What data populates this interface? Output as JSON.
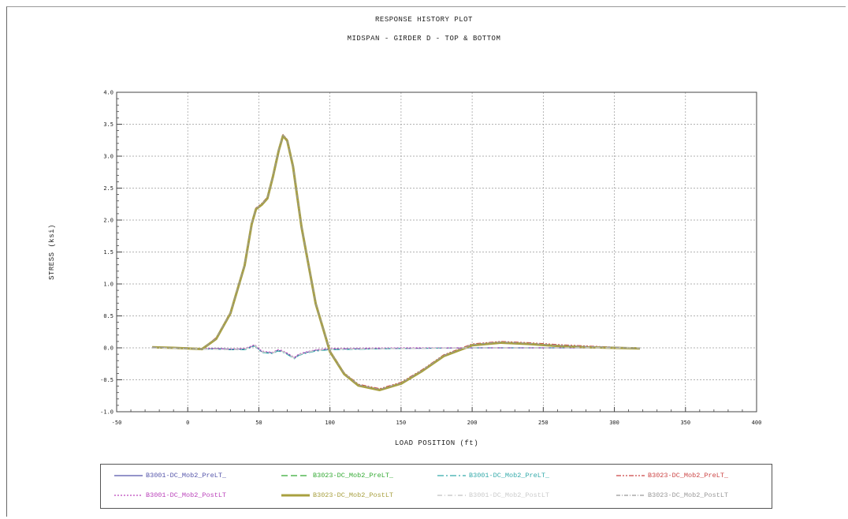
{
  "chart_data": {
    "type": "line",
    "title": "RESPONSE HISTORY PLOT",
    "subtitle": "MIDSPAN - GIRDER D - TOP & BOTTOM",
    "xlabel": "LOAD POSITION (ft)",
    "ylabel": "STRESS (ksi)",
    "xlim": [
      -50,
      400
    ],
    "ylim": [
      -1.0,
      4.0
    ],
    "xticks": [
      "-50",
      "0",
      "50",
      "100",
      "150",
      "200",
      "250",
      "300",
      "350",
      "400"
    ],
    "yticks": [
      "-1.0",
      "-0.5",
      "0.0",
      "0.5",
      "1.0",
      "1.5",
      "2.0",
      "2.5",
      "3.0",
      "3.5",
      "4.0"
    ],
    "grid": true,
    "legend_position": "bottom",
    "series": [
      {
        "name": "B3001-DC_Mob2_PreLT_",
        "color": "#5555aa",
        "dash": "solid",
        "width": 1.2,
        "x": [
          -25,
          0,
          10,
          20,
          30,
          40,
          45,
          47,
          49,
          52,
          55,
          60,
          63,
          66,
          69,
          72,
          75,
          78,
          82,
          90,
          100,
          150,
          200,
          250,
          300,
          318
        ],
        "y": [
          0.01,
          0.0,
          -0.02,
          -0.01,
          -0.02,
          -0.02,
          0.02,
          0.04,
          0.0,
          -0.06,
          -0.07,
          -0.08,
          -0.04,
          -0.05,
          -0.08,
          -0.12,
          -0.16,
          -0.11,
          -0.08,
          -0.04,
          -0.02,
          -0.01,
          0.0,
          0.0,
          0.0,
          0.0
        ]
      },
      {
        "name": "B3023-DC_Mob2_PreLT_",
        "color": "#33aa33",
        "dash": "8,4",
        "width": 1.2,
        "x": [
          -25,
          -10,
          0,
          10,
          20,
          30,
          40,
          45,
          48,
          52,
          56,
          60,
          64,
          67,
          70,
          74,
          80,
          90,
          100,
          110,
          120,
          135,
          150,
          165,
          180,
          200,
          220,
          240,
          260,
          280,
          300,
          318
        ],
        "y": [
          0.01,
          0.0,
          -0.01,
          -0.02,
          0.15,
          0.55,
          1.3,
          1.95,
          2.18,
          2.25,
          2.35,
          2.7,
          3.1,
          3.33,
          3.25,
          2.85,
          1.9,
          0.7,
          -0.05,
          -0.4,
          -0.58,
          -0.65,
          -0.55,
          -0.35,
          -0.12,
          0.05,
          0.09,
          0.07,
          0.04,
          0.02,
          0.01,
          -0.01
        ]
      },
      {
        "name": "B3001-DC_Mob2_PreLT_",
        "color": "#33aaaa",
        "dash": "8,3,2,3",
        "width": 1.2,
        "x": [
          -25,
          0,
          10,
          20,
          30,
          40,
          45,
          47,
          49,
          52,
          55,
          60,
          63,
          66,
          69,
          72,
          75,
          78,
          82,
          90,
          100,
          150,
          200,
          250,
          300,
          318
        ],
        "y": [
          0.0,
          -0.01,
          -0.02,
          -0.02,
          -0.03,
          -0.03,
          0.01,
          0.03,
          -0.01,
          -0.07,
          -0.08,
          -0.09,
          -0.05,
          -0.06,
          -0.09,
          -0.13,
          -0.17,
          -0.12,
          -0.09,
          -0.05,
          -0.03,
          -0.01,
          0.0,
          0.0,
          0.0,
          0.0
        ]
      },
      {
        "name": "B3023-DC_Mob2_PreLT_",
        "color": "#cc4444",
        "dash": "6,2,2,2,2,2",
        "width": 1.2,
        "x": [
          -25,
          -10,
          0,
          10,
          20,
          30,
          40,
          45,
          48,
          52,
          56,
          60,
          64,
          67,
          70,
          74,
          80,
          90,
          100,
          110,
          120,
          135,
          150,
          165,
          180,
          200,
          220,
          240,
          260,
          280,
          300,
          318
        ],
        "y": [
          0.01,
          0.0,
          -0.01,
          -0.02,
          0.16,
          0.56,
          1.31,
          1.96,
          2.19,
          2.26,
          2.36,
          2.71,
          3.11,
          3.34,
          3.26,
          2.86,
          1.91,
          0.71,
          -0.04,
          -0.39,
          -0.57,
          -0.64,
          -0.54,
          -0.34,
          -0.11,
          0.06,
          0.1,
          0.08,
          0.05,
          0.03,
          0.01,
          -0.01
        ]
      },
      {
        "name": "B3001-DC_Mob2_PostLT",
        "color": "#bb44bb",
        "dash": "2,2",
        "width": 1.2,
        "x": [
          -25,
          0,
          10,
          20,
          30,
          40,
          45,
          47,
          49,
          52,
          55,
          60,
          63,
          66,
          69,
          72,
          75,
          78,
          82,
          90,
          100,
          150,
          200,
          250,
          300,
          318
        ],
        "y": [
          0.0,
          0.0,
          -0.01,
          -0.01,
          -0.02,
          -0.01,
          0.03,
          0.05,
          0.01,
          -0.05,
          -0.06,
          -0.07,
          -0.03,
          -0.04,
          -0.07,
          -0.11,
          -0.15,
          -0.1,
          -0.07,
          -0.03,
          -0.01,
          0.0,
          0.0,
          0.0,
          0.0,
          0.0
        ]
      },
      {
        "name": "B3023-DC_Mob2_PostLT",
        "color": "#a8a040",
        "dash": "solid",
        "width": 3,
        "x": [
          -25,
          -10,
          0,
          10,
          20,
          30,
          40,
          45,
          48,
          52,
          56,
          60,
          64,
          67,
          70,
          74,
          80,
          90,
          100,
          110,
          120,
          135,
          150,
          165,
          180,
          200,
          220,
          240,
          260,
          280,
          300,
          318
        ],
        "y": [
          0.01,
          0.0,
          -0.01,
          -0.02,
          0.14,
          0.54,
          1.29,
          1.94,
          2.17,
          2.24,
          2.34,
          2.69,
          3.09,
          3.32,
          3.24,
          2.84,
          1.89,
          0.69,
          -0.06,
          -0.41,
          -0.59,
          -0.66,
          -0.56,
          -0.36,
          -0.13,
          0.04,
          0.08,
          0.06,
          0.03,
          0.01,
          0.0,
          -0.01
        ]
      },
      {
        "name": "B3001-DC_Mob2_PostLT",
        "color": "#cccccc",
        "dash": "6,3,1,3",
        "width": 1.5,
        "x": [
          -25,
          0,
          10,
          20,
          30,
          40,
          45,
          47,
          49,
          52,
          55,
          60,
          63,
          66,
          69,
          72,
          75,
          78,
          82,
          90,
          100,
          150,
          200,
          250,
          300,
          318
        ],
        "y": [
          0.0,
          -0.01,
          -0.02,
          -0.02,
          -0.03,
          -0.02,
          0.02,
          0.04,
          0.0,
          -0.06,
          -0.07,
          -0.08,
          -0.04,
          -0.05,
          -0.08,
          -0.12,
          -0.16,
          -0.11,
          -0.08,
          -0.04,
          -0.02,
          -0.01,
          0.0,
          0.0,
          0.0,
          0.0
        ]
      },
      {
        "name": "B3023-DC_Mob2_PostLT",
        "color": "#999999",
        "dash": "5,2,1,2",
        "width": 1.2,
        "x": [
          -25,
          -10,
          0,
          10,
          20,
          30,
          40,
          45,
          48,
          52,
          56,
          60,
          64,
          67,
          70,
          74,
          80,
          90,
          100,
          110,
          120,
          135,
          150,
          165,
          180,
          200,
          220,
          240,
          260,
          280,
          300,
          318
        ],
        "y": [
          0.01,
          0.0,
          -0.01,
          -0.02,
          0.15,
          0.55,
          1.3,
          1.95,
          2.18,
          2.25,
          2.35,
          2.7,
          3.1,
          3.33,
          3.25,
          2.85,
          1.9,
          0.7,
          -0.05,
          -0.4,
          -0.58,
          -0.65,
          -0.55,
          -0.35,
          -0.12,
          0.05,
          0.09,
          0.07,
          0.04,
          0.02,
          0.01,
          -0.01
        ]
      }
    ]
  }
}
